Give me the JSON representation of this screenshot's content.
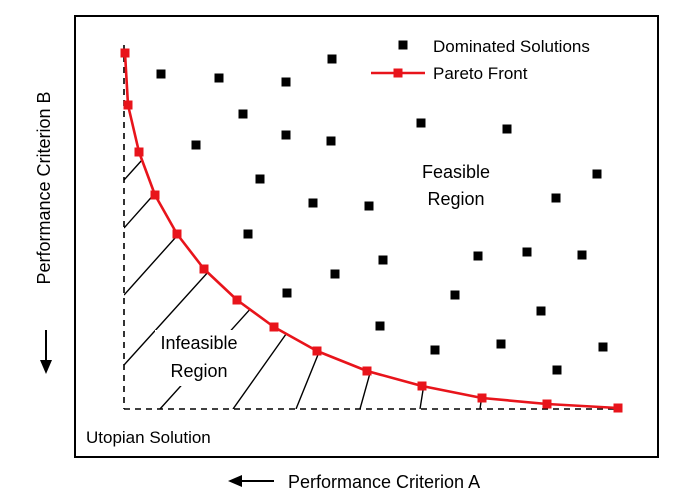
{
  "legend": {
    "dominated_label": "Dominated Solutions",
    "pareto_label": "Pareto Front"
  },
  "regions": {
    "feasible_line1": "Feasible",
    "feasible_line2": "Region",
    "infeasible_line1": "Infeasible",
    "infeasible_line2": "Region"
  },
  "utopian_label": "Utopian Solution",
  "axes": {
    "x_label": "Performance Criterion A",
    "y_label": "Performance Criterion B"
  },
  "colors": {
    "pareto": "#e8141b",
    "dominated": "#000000",
    "frame": "#000000"
  }
}
